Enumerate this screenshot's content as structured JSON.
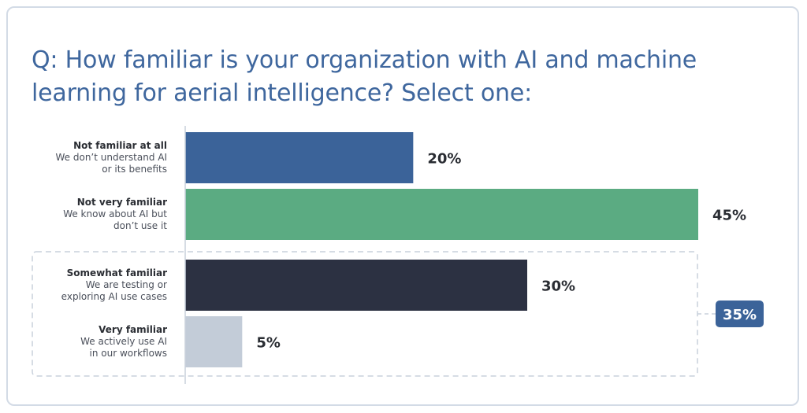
{
  "chart_data": {
    "type": "bar",
    "orientation": "horizontal",
    "title": "Q: How familiar is your organization with AI and machine learning for aerial intelligence? Select one:",
    "categories": [
      {
        "label": "Not familiar at all",
        "description": "We don’t understand AI or its benefits",
        "desc_lines": [
          "We don’t understand AI",
          "or its benefits"
        ]
      },
      {
        "label": "Not very familiar",
        "description": "We know about AI but don’t use it",
        "desc_lines": [
          "We know about AI but",
          "don’t use it"
        ]
      },
      {
        "label": "Somewhat familiar",
        "description": "We are testing or exploring AI use cases",
        "desc_lines": [
          "We are testing or",
          "exploring AI use cases"
        ]
      },
      {
        "label": "Very familiar",
        "description": "We actively use AI in our workflows",
        "desc_lines": [
          "We actively use AI",
          "in our workflows"
        ]
      }
    ],
    "values": [
      20,
      45,
      30,
      5
    ],
    "value_labels": [
      "20%",
      "45%",
      "30%",
      "5%"
    ],
    "colors": [
      "#3b6399",
      "#5bab82",
      "#2c3142",
      "#c3ccd8"
    ],
    "group_annotation": {
      "members": [
        "Somewhat familiar",
        "Very familiar"
      ],
      "label": "35%",
      "color": "#3b6399"
    },
    "xlim": [
      0,
      45
    ],
    "grid": false
  }
}
